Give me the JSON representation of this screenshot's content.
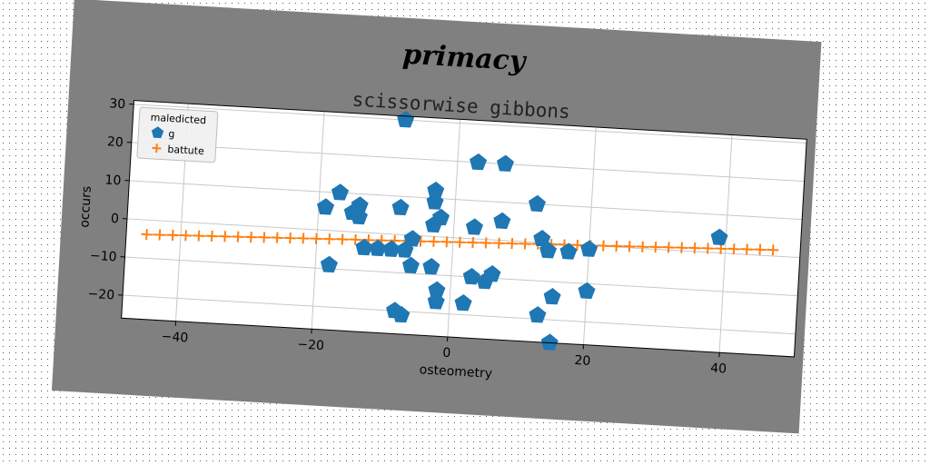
{
  "figure": {
    "suptitle": "primacy",
    "bg_color": "#808080",
    "axes_bg": "#ffffff"
  },
  "chart_data": {
    "type": "scatter",
    "title": "scissorwise gibbons",
    "xlabel": "osteometry",
    "ylabel": "occurs",
    "xlim": [
      -48,
      51
    ],
    "ylim": [
      -26,
      31
    ],
    "xticks": [
      -40,
      -20,
      0,
      20,
      40
    ],
    "yticks": [
      -20,
      -10,
      0,
      10,
      20,
      30
    ],
    "grid": true,
    "legend": {
      "title": "maledicted",
      "position": "top-left"
    },
    "series": [
      {
        "name": "g",
        "kind": "scatter",
        "marker": "pentagon",
        "color": "#1f77b4",
        "points": [
          [
            -8,
            30
          ],
          [
            3,
            20
          ],
          [
            7,
            20
          ],
          [
            -3,
            12
          ],
          [
            -17,
            10
          ],
          [
            -3,
            9
          ],
          [
            12,
            10
          ],
          [
            -19,
            6
          ],
          [
            -14,
            7
          ],
          [
            -8,
            7
          ],
          [
            -15,
            5
          ],
          [
            -14,
            4
          ],
          [
            -2,
            5
          ],
          [
            -3,
            3
          ],
          [
            3,
            3
          ],
          [
            7,
            5
          ],
          [
            13,
            1
          ],
          [
            -6,
            -1
          ],
          [
            14,
            -2
          ],
          [
            17,
            -2
          ],
          [
            20,
            -1
          ],
          [
            39,
            4
          ],
          [
            -13,
            -4
          ],
          [
            -11,
            -4
          ],
          [
            -9,
            -4
          ],
          [
            -7,
            -4
          ],
          [
            -6,
            -8
          ],
          [
            -3,
            -8
          ],
          [
            -18,
            -9
          ],
          [
            3,
            -10
          ],
          [
            5,
            -11
          ],
          [
            6,
            -9
          ],
          [
            -2,
            -14
          ],
          [
            15,
            -14
          ],
          [
            20,
            -12
          ],
          [
            -2,
            -17
          ],
          [
            2,
            -17
          ],
          [
            13,
            -19
          ],
          [
            -8,
            -20
          ],
          [
            -7,
            -21
          ],
          [
            15,
            -26
          ]
        ]
      },
      {
        "name": "battute",
        "kind": "line-markers",
        "marker": "plus",
        "color": "#ff7f0e",
        "x_start": -45,
        "x_end": 47,
        "count": 49,
        "y_start": -3.8,
        "y_end": 1.6
      }
    ]
  }
}
